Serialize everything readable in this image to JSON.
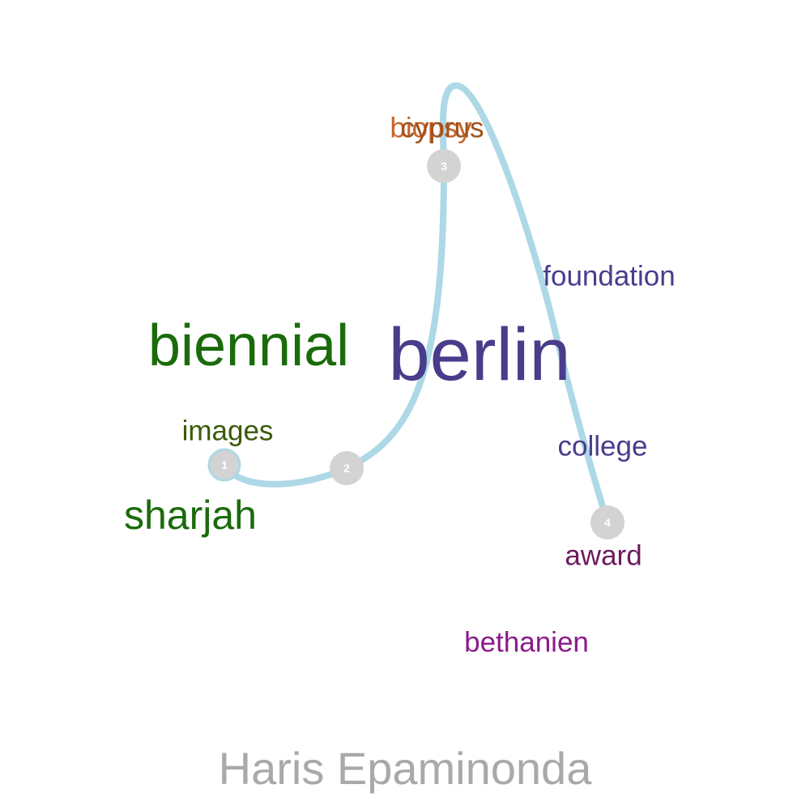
{
  "words": {
    "berlin": {
      "text": "berlin",
      "color": "#483d8b"
    },
    "biennial": {
      "text": "biennial",
      "color": "#1a6b0a"
    },
    "sharjah": {
      "text": "sharjah",
      "color": "#1a6b0a"
    },
    "images": {
      "text": "images",
      "color": "#3b5a0a"
    },
    "foundation": {
      "text": "foundation",
      "color": "#483d8b"
    },
    "college": {
      "text": "college",
      "color": "#483d8b"
    },
    "award": {
      "text": "award",
      "color": "#6b1a5e"
    },
    "bethanien": {
      "text": "bethanien",
      "color": "#8b1a8b"
    },
    "biopsy": {
      "text": "biopsy",
      "color": "#c8642a"
    },
    "cyprus": {
      "text": "cyprus",
      "color": "#a0521e"
    }
  },
  "path": {
    "color": "#add8e6"
  },
  "markers": {
    "color": "#d3d3d3",
    "labels": [
      "1",
      "2",
      "3",
      "4"
    ]
  },
  "title": {
    "text": "Haris Epaminonda",
    "color": "#a9a9a9"
  }
}
